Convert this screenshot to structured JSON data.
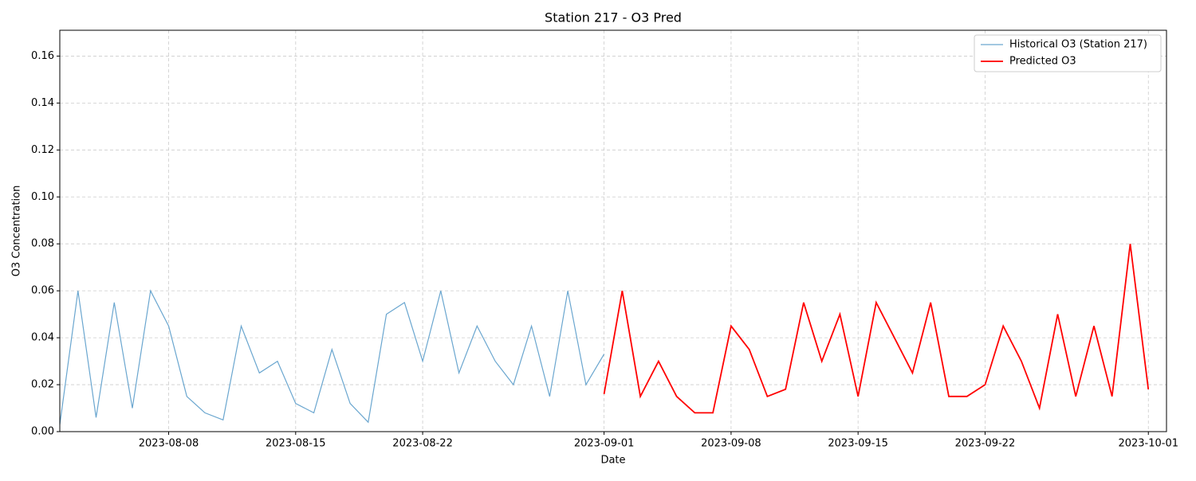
{
  "chart_data": {
    "type": "line",
    "title": "Station 217 - O3 Pred",
    "x_label": "Date",
    "y_label": "O3 Concentration",
    "xlim": [
      "2023-08-02",
      "2023-10-02"
    ],
    "xticks": [
      "2023-08-08",
      "2023-08-15",
      "2023-08-22",
      "2023-09-01",
      "2023-09-08",
      "2023-09-15",
      "2023-09-22",
      "2023-10-01"
    ],
    "ylim": [
      0,
      0.171
    ],
    "yticks": [
      {
        "value": 0,
        "label": "0.00"
      },
      {
        "value": 0.02,
        "label": "0.02"
      },
      {
        "value": 0.04,
        "label": "0.04"
      },
      {
        "value": 0.06,
        "label": "0.06"
      },
      {
        "value": 0.08,
        "label": "0.08"
      },
      {
        "value": 0.1,
        "label": "0.10"
      },
      {
        "value": 0.12,
        "label": "0.12"
      },
      {
        "value": 0.14,
        "label": "0.14"
      },
      {
        "value": 0.16,
        "label": "0.16"
      }
    ],
    "grid": true,
    "legend": "upper right",
    "series": [
      {
        "name": "Historical O3 (Station 217)",
        "color": "#6aa6cf",
        "x": [
          "2023-08-02",
          "2023-08-03",
          "2023-08-04",
          "2023-08-05",
          "2023-08-06",
          "2023-08-07",
          "2023-08-08",
          "2023-08-09",
          "2023-08-10",
          "2023-08-11",
          "2023-08-12",
          "2023-08-13",
          "2023-08-14",
          "2023-08-15",
          "2023-08-16",
          "2023-08-17",
          "2023-08-18",
          "2023-08-19",
          "2023-08-20",
          "2023-08-21",
          "2023-08-22",
          "2023-08-23",
          "2023-08-24",
          "2023-08-25",
          "2023-08-26",
          "2023-08-27",
          "2023-08-28",
          "2023-08-29",
          "2023-08-30",
          "2023-08-31",
          "2023-09-01"
        ],
        "values": [
          0.003,
          0.06,
          0.006,
          0.055,
          0.01,
          0.06,
          0.045,
          0.015,
          0.008,
          0.005,
          0.045,
          0.025,
          0.03,
          0.012,
          0.008,
          0.035,
          0.012,
          0.004,
          0.05,
          0.055,
          0.03,
          0.06,
          0.025,
          0.045,
          0.03,
          0.02,
          0.045,
          0.015,
          0.06,
          0.02,
          0.033
        ]
      },
      {
        "name": "Predicted O3",
        "color": "#ff0000",
        "x": [
          "2023-09-01",
          "2023-09-02",
          "2023-09-03",
          "2023-09-04",
          "2023-09-05",
          "2023-09-06",
          "2023-09-07",
          "2023-09-08",
          "2023-09-09",
          "2023-09-10",
          "2023-09-11",
          "2023-09-12",
          "2023-09-13",
          "2023-09-14",
          "2023-09-15",
          "2023-09-16",
          "2023-09-17",
          "2023-09-18",
          "2023-09-19",
          "2023-09-20",
          "2023-09-21",
          "2023-09-22",
          "2023-09-23",
          "2023-09-24",
          "2023-09-25",
          "2023-09-26",
          "2023-09-27",
          "2023-09-28",
          "2023-09-29",
          "2023-09-30",
          "2023-10-01"
        ],
        "values": [
          0.016,
          0.06,
          0.015,
          0.03,
          0.015,
          0.008,
          0.008,
          0.045,
          0.035,
          0.015,
          0.018,
          0.055,
          0.03,
          0.05,
          0.015,
          0.055,
          0.04,
          0.025,
          0.055,
          0.015,
          0.015,
          0.02,
          0.045,
          0.03,
          0.01,
          0.05,
          0.015,
          0.045,
          0.015,
          0.08,
          0.018
        ]
      }
    ]
  }
}
